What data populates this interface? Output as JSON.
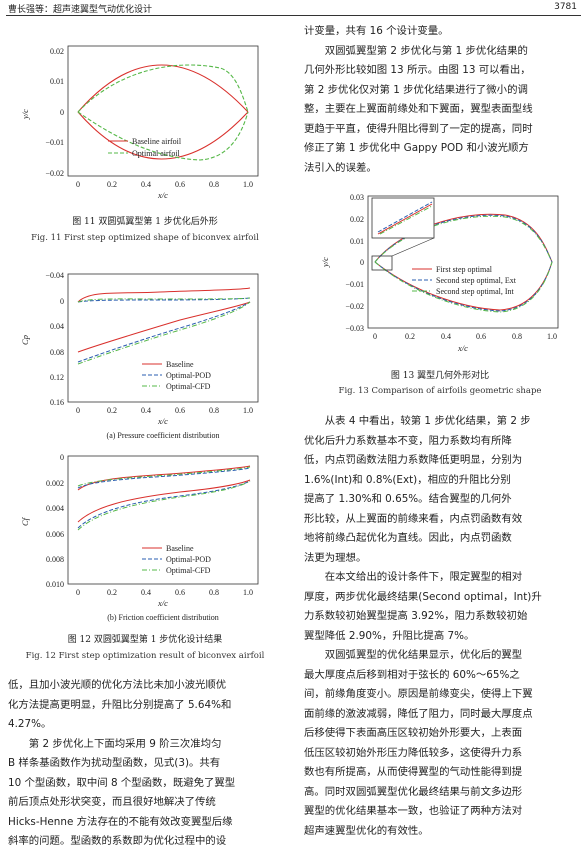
{
  "header": {
    "left": "曹长强等：超声速翼型气动优化设计",
    "right": "3781"
  },
  "fig11": {
    "cap_cn": "图 11    双圆弧翼型第 1 步优化后外形",
    "cap_en": "Fig. 11    First step optimized shape of biconvex airfoil",
    "legend": [
      "Baseline airfoil",
      "Optimal airfoil"
    ],
    "xlabel": "x/c",
    "ylabel": "y/c",
    "xticks": [
      "0",
      "0.2",
      "0.4",
      "0.6",
      "0.8",
      "1.0"
    ],
    "yticks": [
      "0.02",
      "0.01",
      "0",
      "−0.01",
      "−0.02"
    ]
  },
  "fig12": {
    "subcap_a": "(a) Pressure coefficient distribution",
    "subcap_b": "(b) Friction coefficient distribution",
    "cap_cn": "图 12    双圆弧翼型第 1 步优化设计结果",
    "cap_en": "Fig. 12    First step optimization result of biconvex airfoil",
    "legend": [
      "Baseline",
      "Optimal-POD",
      "Optimal-CFD"
    ],
    "xlabel": "x/c",
    "ylabel_a": "Cp",
    "ylabel_b": "Cf",
    "xticks": [
      "0",
      "0.2",
      "0.4",
      "0.6",
      "0.8",
      "1.0"
    ],
    "yticks_a": [
      "−0.04",
      "0",
      "0.04",
      "0.08",
      "0.12",
      "0.16"
    ],
    "yticks_b": [
      "0",
      "0.002",
      "0.004",
      "0.006",
      "0.008",
      "0.010"
    ]
  },
  "fig13": {
    "cap_cn": "图 13    翼型几何外形对比",
    "cap_en": "Fig. 13    Comparison of airfoils geometric shape",
    "legend": [
      "First step optimal",
      "Second step optimal, Ext",
      "Second step optimal, Int"
    ],
    "xlabel": "x/c",
    "ylabel": "y/c",
    "xticks": [
      "0",
      "0.2",
      "0.4",
      "0.6",
      "0.8",
      "1.0"
    ],
    "yticks": [
      "0.03",
      "0.02",
      "0.01",
      "0",
      "−0.01",
      "−0.02",
      "−0.03"
    ]
  },
  "left_text": [
    "低，且加小波光顺的优化方法比未加小波光顺优",
    "化方法提高更明显，升阻比分别提高了 5.64%和",
    "4.27%。",
    "　　第 2 步优化上下面均采用 9 阶三次准均匀",
    "B 样条基函数作为扰动型函数，见式(3)。共有",
    "10 个型函数，取中间 8 个型函数，既避免了翼型",
    "前后顶点处形状突变，而且很好地解决了传统",
    "Hicks-Henne 方法存在的不能有效改变翼型后缘",
    "斜率的问题。型函数的系数即为优化过程中的设"
  ],
  "right_text_top": [
    "计变量，共有 16 个设计变量。",
    "　　双圆弧翼型第 2 步优化与第 1 步优化结果的",
    "几何外形比较如图 13 所示。由图 13 可以看出，",
    "第 2 步优化仅对第 1 步优化结果进行了微小的调",
    "整，主要在上翼面前缘处和下翼面，翼型表面型线",
    "更趋于平直，使得升阻比得到了一定的提高，同时",
    "修正了第 1 步优化中 Gappy POD 和小波光顺方",
    "法引入的误差。"
  ],
  "right_text_bottom": [
    "　　从表 4 中看出，较第 1 步优化结果，第 2 步",
    "优化后升力系数基本不变，阻力系数均有所降",
    "低，内点罚函数法阻力系数降低更明显，分别为",
    "1.6%(Int)和 0.8%(Ext)，相应的升阻比分别",
    "提高了 1.30%和 0.65%。结合翼型的几何外",
    "形比较，从上翼面的前缘来看，内点罚函数有效",
    "地将前缘凸起优化为直线。因此，内点罚函数",
    "法更为理想。",
    "　　在本文给出的设计条件下，限定翼型的相对",
    "厚度，两步优化最终结果(Second optimal，Int)升",
    "力系数较初始翼型提高 3.92%，阻力系数较初始",
    "翼型降低 2.90%，升阻比提高 7%。",
    "　　双圆弧翼型的优化结果显示，优化后的翼型",
    "最大厚度点后移到相对于弦长的 60%～65%之",
    "间，前缘角度变小。原因是前缘变尖，使得上下翼",
    "面前缘的激波减弱，降低了阻力，同时最大厚度点",
    "后移使得下表面高压区较初始外形要大，上表面",
    "低压区较初始外形压力降低较多，这使得升力系",
    "数也有所提高，从而使得翼型的气动性能得到提",
    "高。同时双圆弧翼型优化最终结果与前文多边形",
    "翼型的优化结果基本一致，也验证了两种方法对",
    "超声速翼型优化的有效性。"
  ]
}
